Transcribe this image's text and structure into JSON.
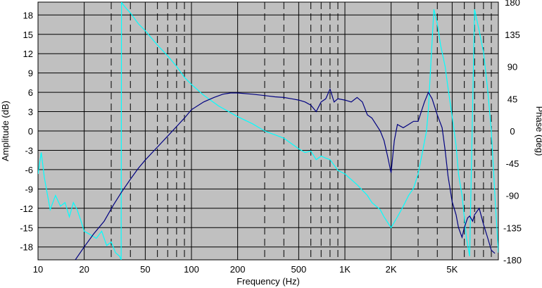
{
  "chart_data": {
    "type": "line",
    "xlabel": "Frequency (Hz)",
    "ylabel_left": "Amplitude (dB)",
    "ylabel_right": "Phase (deg)",
    "x_scale": "log",
    "xlim": [
      10,
      10000
    ],
    "ylim_left": [
      -20,
      20
    ],
    "ylim_right": [
      -180,
      180
    ],
    "x_ticks": [
      10,
      20,
      50,
      100,
      200,
      500,
      1000,
      2000,
      5000
    ],
    "x_tick_labels": [
      "10",
      "20",
      "50",
      "100",
      "200",
      "500",
      "1K",
      "2K",
      "5K"
    ],
    "y_ticks_left": [
      18,
      15,
      12,
      9,
      6,
      3,
      0,
      -3,
      -6,
      -9,
      -12,
      -15,
      -18
    ],
    "y_ticks_right": [
      180,
      135,
      90,
      45,
      0,
      -45,
      -90,
      -135,
      -180
    ],
    "grid": true,
    "colors": {
      "background": "#C0C0C0",
      "grid": "#000000",
      "amplitude": "#000080",
      "phase": "#00FFFF"
    },
    "series": [
      {
        "axis": "left",
        "x": [
          17.5,
          20,
          23,
          27,
          31,
          35,
          40,
          45,
          50,
          60,
          70,
          80,
          90,
          100,
          120,
          140,
          160,
          180,
          200,
          250,
          300,
          350,
          400,
          450,
          500,
          550,
          600,
          650,
          700,
          750,
          800,
          850,
          900,
          1000,
          1100,
          1200,
          1300,
          1400,
          1500,
          1700,
          1800,
          1900,
          2000,
          2100,
          2200,
          2400,
          2600,
          2800,
          3000,
          3300,
          3500,
          3700,
          4000,
          4300,
          4500,
          4700,
          5000,
          5300,
          5500,
          5800,
          6000,
          6300,
          6500,
          6800,
          7000,
          7500,
          8000,
          8500,
          9000,
          9500
        ],
        "y": [
          -20,
          -18,
          -16,
          -14,
          -11.5,
          -9.5,
          -7.5,
          -5.8,
          -4.5,
          -2.5,
          -0.8,
          0.7,
          2,
          3.3,
          4.5,
          5.2,
          5.7,
          5.9,
          5.9,
          5.7,
          5.5,
          5.3,
          5.2,
          5.0,
          4.8,
          4.5,
          4.0,
          3.0,
          4.5,
          5.0,
          6.5,
          4.5,
          5.0,
          4.8,
          4.5,
          5.2,
          4.5,
          2.5,
          2.0,
          0.0,
          -1.5,
          -4.0,
          -6.5,
          -1.5,
          1.0,
          0.5,
          1.0,
          1.5,
          1.5,
          4.5,
          6.0,
          5.0,
          2.5,
          0.5,
          -3.0,
          -7.0,
          -11,
          -13,
          -15,
          -16.5,
          -15,
          -13.5,
          -13.2,
          -14,
          -13,
          -12,
          -14.5,
          -16.5,
          -18.5,
          -19
        ]
      },
      {
        "axis": "right",
        "x": [
          10,
          10.5,
          11,
          11.5,
          12,
          13,
          14,
          15,
          16,
          17,
          18,
          19,
          20,
          22,
          24,
          26,
          28,
          30,
          32,
          34,
          34.8,
          35,
          35.5,
          36,
          38,
          40,
          45,
          50,
          60,
          70,
          80,
          90,
          100,
          120,
          150,
          200,
          250,
          300,
          400,
          500,
          550,
          600,
          650,
          700,
          750,
          800,
          900,
          1000,
          1200,
          1400,
          1500,
          1700,
          1800,
          2000,
          2200,
          2400,
          2600,
          2800,
          3000,
          3200,
          3400,
          3500,
          3600,
          3800,
          4000,
          4200,
          4500,
          4700,
          5000,
          5300,
          5500,
          5800,
          6000,
          6200,
          6500,
          7000,
          7500,
          8000,
          8500,
          9000,
          9500,
          10000
        ],
        "y": [
          -60,
          -30,
          -65,
          -88,
          -110,
          -90,
          -105,
          -100,
          -120,
          -100,
          -110,
          -125,
          -140,
          -145,
          -150,
          -140,
          -160,
          -155,
          -170,
          -175,
          -180,
          180,
          178,
          176,
          170,
          165,
          150,
          140,
          120,
          105,
          90,
          75,
          65,
          50,
          35,
          20,
          10,
          0,
          -10,
          -25,
          -30,
          -28,
          -40,
          -35,
          -38,
          -40,
          -55,
          -60,
          -75,
          -90,
          -100,
          -110,
          -120,
          -135,
          -120,
          -105,
          -90,
          -80,
          -60,
          -30,
          0,
          30,
          80,
          170,
          150,
          120,
          90,
          60,
          20,
          -20,
          -60,
          -90,
          -120,
          -150,
          -175,
          170,
          140,
          110,
          60,
          0,
          -90,
          -170
        ]
      }
    ]
  }
}
